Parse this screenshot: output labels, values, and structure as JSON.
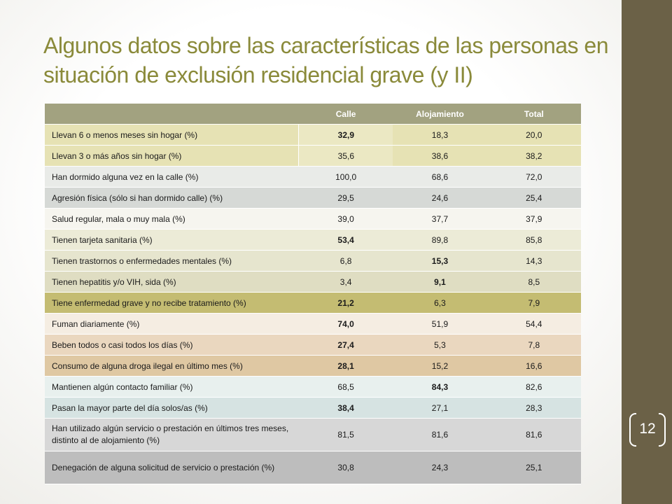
{
  "slide": {
    "title": "Algunos datos sobre las características de las personas en situación de exclusión residencial grave (y II)",
    "page_number": "12"
  },
  "table": {
    "headers": [
      "",
      "Calle",
      "Alojamiento",
      "Total"
    ],
    "rows": [
      {
        "label": "Llevan 6 o menos meses sin hogar (%)",
        "calle": "32,9",
        "alojamiento": "18,3",
        "total": "20,0"
      },
      {
        "label": "Llevan 3 o más años sin hogar (%)",
        "calle": "35,6",
        "alojamiento": "38,6",
        "total": "38,2"
      },
      {
        "label": "Han dormido alguna vez en la calle (%)",
        "calle": "100,0",
        "alojamiento": "68,6",
        "total": "72,0"
      },
      {
        "label": "Agresión física (sólo si han dormido calle) (%)",
        "calle": "29,5",
        "alojamiento": "24,6",
        "total": "25,4"
      },
      {
        "label": "Salud regular, mala o muy mala (%)",
        "calle": "39,0",
        "alojamiento": "37,7",
        "total": "37,9"
      },
      {
        "label": "Tienen tarjeta sanitaria (%)",
        "calle": "53,4",
        "alojamiento": "89,8",
        "total": "85,8"
      },
      {
        "label": "Tienen trastornos o enfermedades mentales (%)",
        "calle": "6,8",
        "alojamiento": "15,3",
        "total": "14,3"
      },
      {
        "label": "Tienen hepatitis y/o VIH, sida (%)",
        "calle": "3,4",
        "alojamiento": "9,1",
        "total": "8,5"
      },
      {
        "label": "Tiene enfermedad grave y no recibe tratamiento (%)",
        "calle": "21,2",
        "alojamiento": "6,3",
        "total": "7,9"
      },
      {
        "label": "Fuman diariamente (%)",
        "calle": "74,0",
        "alojamiento": "51,9",
        "total": "54,4"
      },
      {
        "label": "Beben todos o casi todos los días (%)",
        "calle": "27,4",
        "alojamiento": "5,3",
        "total": "7,8"
      },
      {
        "label": "Consumo de alguna droga ilegal en último mes (%)",
        "calle": "28,1",
        "alojamiento": "15,2",
        "total": "16,6"
      },
      {
        "label": "Mantienen algún contacto familiar (%)",
        "calle": "68,5",
        "alojamiento": "84,3",
        "total": "82,6"
      },
      {
        "label": "Pasan la mayor parte del día solos/as (%)",
        "calle": "38,4",
        "alojamiento": "27,1",
        "total": "28,3"
      },
      {
        "label": "Han utilizado algún servicio o prestación en últimos tres meses, distinto al de alojamiento (%)",
        "calle": "81,5",
        "alojamiento": "81,6",
        "total": "81,6"
      },
      {
        "label": "Denegación de alguna solicitud de servicio o prestación (%)",
        "calle": "30,8",
        "alojamiento": "24,3",
        "total": "25,1"
      }
    ]
  },
  "colors": {
    "title": "#8a8a3a",
    "sidebar": "#6b6147",
    "header": "#a2a280"
  }
}
